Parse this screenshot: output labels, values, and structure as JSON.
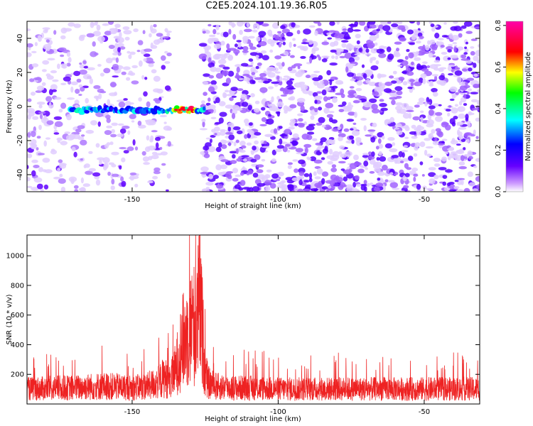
{
  "title": "C2E5.2024.101.19.36.R05",
  "chart_data": [
    {
      "type": "heatmap",
      "xlabel": "Height of straight line (km)",
      "ylabel": "Frequency (Hz)",
      "xlim": [
        -186,
        -31
      ],
      "ylim": [
        -50,
        50
      ],
      "xticks": [
        -150,
        -100,
        -50
      ],
      "yticks": [
        -40,
        -20,
        0,
        20,
        40
      ],
      "colorbar": {
        "label": "Normalized spectral amplitude",
        "range": [
          0.0,
          0.82
        ],
        "ticks": [
          "0.0",
          "0.2",
          "0.4",
          "0.6",
          "0.8"
        ],
        "colors": [
          "#ffffff",
          "#6600ff",
          "#0000ff",
          "#00ffff",
          "#00ff00",
          "#ffff00",
          "#ff0000",
          "#ff00aa"
        ]
      },
      "noise_gap_km": [
        -137,
        -126
      ],
      "signal_band": {
        "x_range_km": [
          -171,
          -125
        ],
        "freq_hz": -2,
        "peak_x_km": [
          -136,
          -128
        ],
        "peak_amplitude": 0.7
      }
    },
    {
      "type": "line",
      "xlabel": "Height of straight line (km)",
      "ylabel": "SNR (10 * v/v)",
      "xlim": [
        -186,
        -31
      ],
      "ylim": [
        0,
        1140
      ],
      "xticks": [
        -150,
        -100,
        -50
      ],
      "yticks": [
        200,
        400,
        600,
        800,
        1000
      ],
      "series": [
        {
          "color": "#ee2222",
          "x": [
            -186,
            -180,
            -175,
            -170,
            -165,
            -160,
            -155,
            -150,
            -145,
            -141,
            -139,
            -137,
            -135,
            -133,
            -131,
            -130,
            -129,
            -128,
            -127,
            -126,
            -125,
            -124,
            -122,
            -120,
            -115,
            -110,
            -100,
            -90,
            -80,
            -70,
            -60,
            -50,
            -40,
            -31
          ],
          "y": [
            140,
            145,
            150,
            150,
            160,
            165,
            160,
            150,
            165,
            200,
            250,
            200,
            330,
            560,
            650,
            700,
            760,
            650,
            1000,
            700,
            300,
            200,
            170,
            160,
            150,
            150,
            140,
            140,
            140,
            140,
            140,
            140,
            140,
            140
          ]
        }
      ]
    }
  ]
}
